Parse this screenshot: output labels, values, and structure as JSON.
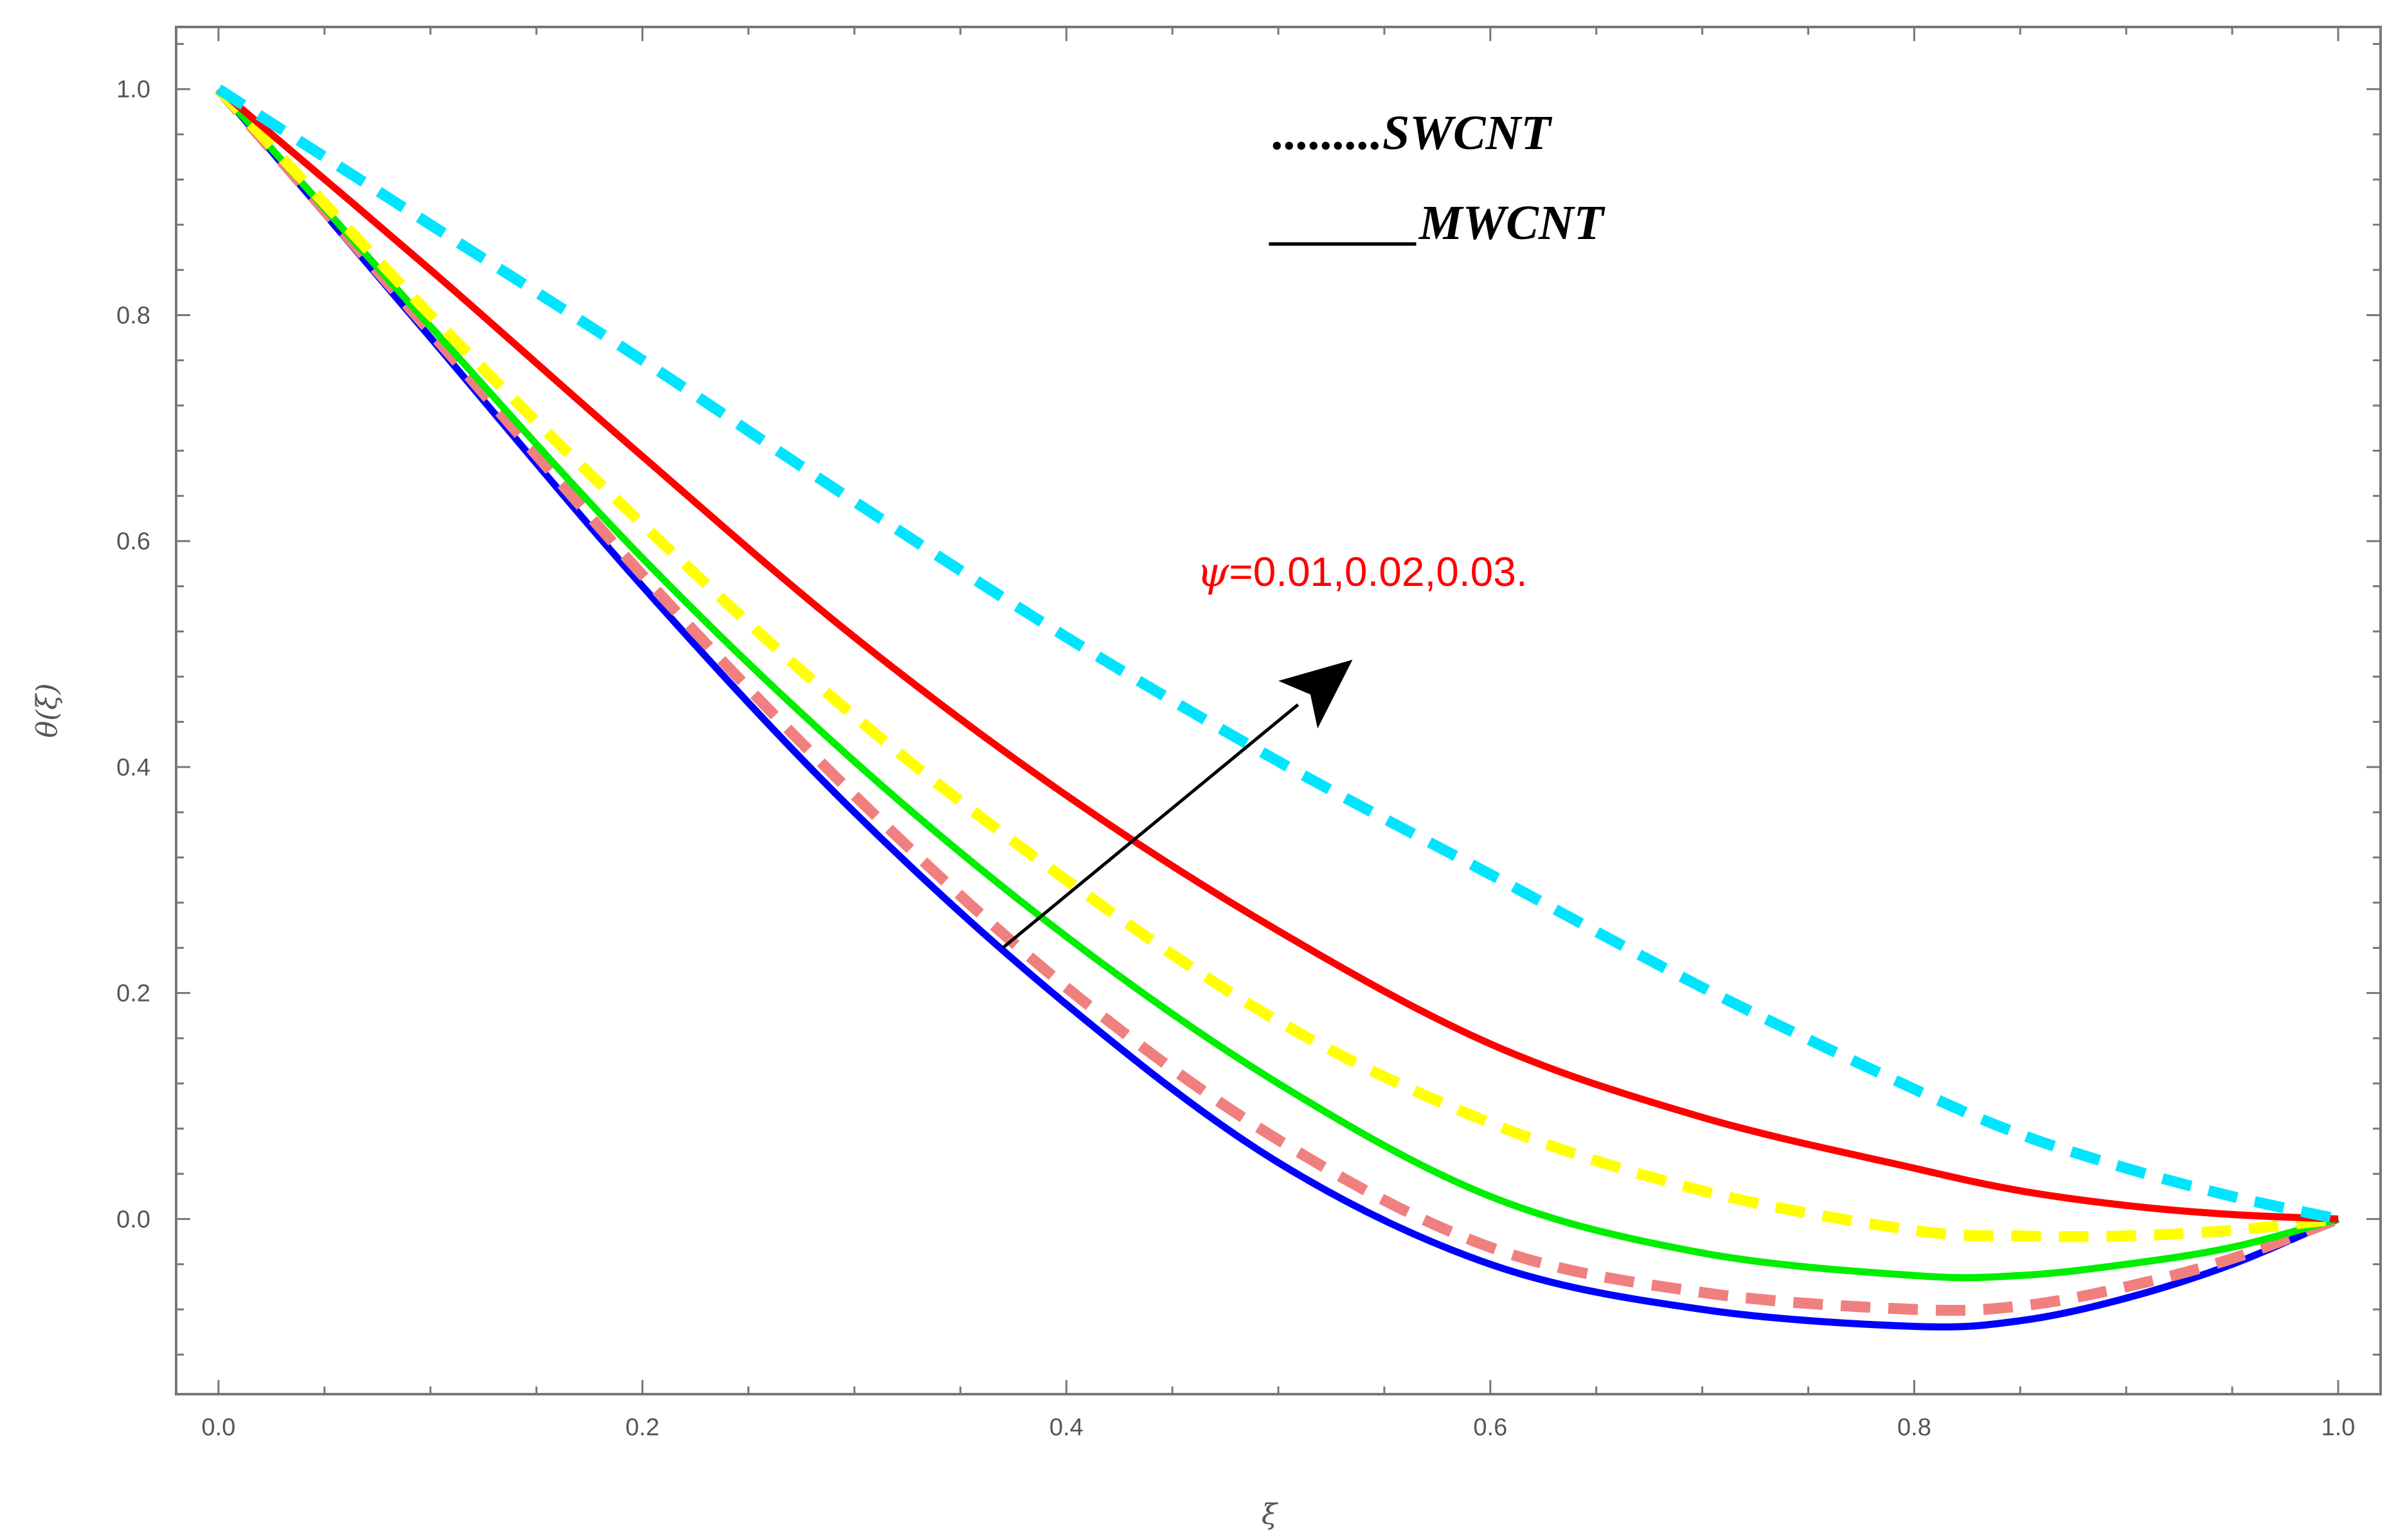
{
  "chart_data": {
    "type": "line",
    "xlabel": "ξ",
    "ylabel": "θ(ξ)",
    "xlim": [
      -0.02,
      1.02
    ],
    "ylim": [
      -0.155,
      1.055
    ],
    "x_ticks": [
      "0.0",
      "0.2",
      "0.4",
      "0.6",
      "0.8",
      "1.0"
    ],
    "y_ticks": [
      "0.0",
      "0.2",
      "0.4",
      "0.6",
      "0.8",
      "1.0"
    ],
    "grid": false,
    "legend_placement": "top-center",
    "legend": [
      {
        "sample": ".........",
        "label": "SWCNT",
        "style": "dotted"
      },
      {
        "sample": "______",
        "label": "MWCNT",
        "style": "solid"
      }
    ],
    "annotation": {
      "prefix": "ψ",
      "text": "=0.01,0.02,0.03.",
      "color": "#ff0000",
      "arrow": {
        "from": [
          0.37,
          0.24
        ],
        "to": [
          0.535,
          0.495
        ]
      }
    },
    "series": [
      {
        "style": "solid",
        "color": "#0000ff",
        "x": [
          0,
          0.1,
          0.2,
          0.3,
          0.4,
          0.5,
          0.6,
          0.7,
          0.8,
          0.85,
          0.9,
          0.95,
          1.0
        ],
        "values": [
          1.0,
          0.78,
          0.56,
          0.36,
          0.19,
          0.05,
          -0.04,
          -0.08,
          -0.095,
          -0.09,
          -0.07,
          -0.04,
          0.0
        ]
      },
      {
        "style": "dashed",
        "color": "#f08080",
        "x": [
          0,
          0.1,
          0.2,
          0.3,
          0.4,
          0.5,
          0.6,
          0.7,
          0.8,
          0.85,
          0.9,
          0.95,
          1.0
        ],
        "values": [
          1.0,
          0.785,
          0.57,
          0.375,
          0.205,
          0.07,
          -0.025,
          -0.065,
          -0.08,
          -0.077,
          -0.06,
          -0.035,
          0.0
        ]
      },
      {
        "style": "solid",
        "color": "#00ee00",
        "x": [
          0,
          0.1,
          0.2,
          0.3,
          0.4,
          0.5,
          0.6,
          0.7,
          0.8,
          0.85,
          0.9,
          0.95,
          1.0
        ],
        "values": [
          1.0,
          0.79,
          0.585,
          0.405,
          0.25,
          0.12,
          0.02,
          -0.03,
          -0.05,
          -0.05,
          -0.04,
          -0.025,
          0.0
        ]
      },
      {
        "style": "dashed",
        "color": "#ffff00",
        "x": [
          0,
          0.1,
          0.2,
          0.3,
          0.4,
          0.5,
          0.6,
          0.7,
          0.8,
          0.85,
          0.9,
          0.95,
          1.0
        ],
        "values": [
          1.0,
          0.8,
          0.615,
          0.445,
          0.3,
          0.175,
          0.085,
          0.025,
          -0.01,
          -0.015,
          -0.015,
          -0.01,
          0.0
        ]
      },
      {
        "style": "solid",
        "color": "#ff0000",
        "x": [
          0,
          0.1,
          0.2,
          0.3,
          0.4,
          0.5,
          0.6,
          0.7,
          0.8,
          0.85,
          0.9,
          0.95,
          1.0
        ],
        "values": [
          1.0,
          0.84,
          0.675,
          0.515,
          0.375,
          0.255,
          0.155,
          0.09,
          0.045,
          0.025,
          0.012,
          0.004,
          0.0
        ]
      },
      {
        "style": "dashed",
        "color": "#00e5ff",
        "x": [
          0,
          0.1,
          0.2,
          0.3,
          0.4,
          0.5,
          0.6,
          0.7,
          0.8,
          0.85,
          0.9,
          0.95,
          1.0
        ],
        "values": [
          1.0,
          0.88,
          0.76,
          0.635,
          0.515,
          0.405,
          0.305,
          0.205,
          0.115,
          0.075,
          0.045,
          0.02,
          0.0
        ]
      }
    ]
  }
}
